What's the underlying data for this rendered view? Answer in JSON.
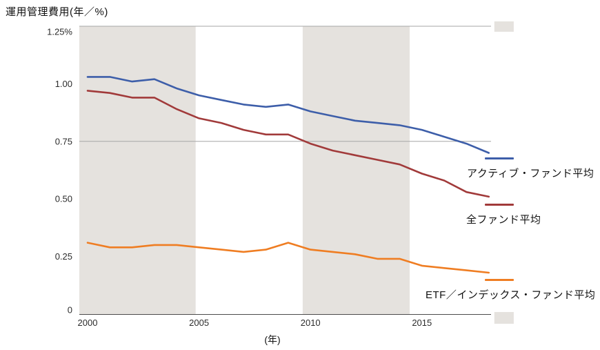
{
  "title": "運用管理費用(年／%)",
  "chart_data": {
    "type": "line",
    "title": "運用管理費用(年／%)",
    "xlabel": "(年)",
    "ylabel": "",
    "x": [
      2000,
      2001,
      2002,
      2003,
      2004,
      2005,
      2006,
      2007,
      2008,
      2009,
      2010,
      2011,
      2012,
      2013,
      2014,
      2015,
      2016,
      2017,
      2018
    ],
    "series": [
      {
        "name": "アクティブ・ファンド平均",
        "color": "#3d5ea9",
        "values": [
          1.03,
          1.03,
          1.01,
          1.02,
          0.98,
          0.95,
          0.93,
          0.91,
          0.9,
          0.91,
          0.88,
          0.86,
          0.84,
          0.83,
          0.82,
          0.8,
          0.77,
          0.74,
          0.7
        ]
      },
      {
        "name": "全ファンド平均",
        "color": "#a13a3a",
        "values": [
          0.97,
          0.96,
          0.94,
          0.94,
          0.89,
          0.85,
          0.83,
          0.8,
          0.78,
          0.78,
          0.74,
          0.71,
          0.69,
          0.67,
          0.65,
          0.61,
          0.58,
          0.53,
          0.51
        ]
      },
      {
        "name": "ETF／インデックス・ファンド平均",
        "color": "#ef7d22",
        "values": [
          0.31,
          0.29,
          0.29,
          0.3,
          0.3,
          0.29,
          0.28,
          0.27,
          0.28,
          0.31,
          0.28,
          0.27,
          0.26,
          0.24,
          0.24,
          0.21,
          0.2,
          0.19,
          0.18
        ]
      }
    ],
    "xlim": [
      1999.63,
      2018.1
    ],
    "ylim": [
      0,
      1.25
    ],
    "y_ticks": [
      {
        "value": 1.25,
        "label": "1.25%"
      },
      {
        "value": 1.0,
        "label": "1.00"
      },
      {
        "value": 0.75,
        "label": "0.75"
      },
      {
        "value": 0.5,
        "label": "0.50"
      },
      {
        "value": 0.25,
        "label": "0.25"
      },
      {
        "value": 0,
        "label": "0"
      }
    ],
    "x_ticks": [
      {
        "value": 2000,
        "label": "2000"
      },
      {
        "value": 2005,
        "label": "2005"
      },
      {
        "value": 2010,
        "label": "2010"
      },
      {
        "value": 2015,
        "label": "2015"
      }
    ],
    "gridlines": [
      0.75,
      1.25
    ],
    "shaded_regions": [
      {
        "from": 1999.63,
        "to": 2004.85
      },
      {
        "from": 2009.65,
        "to": 2014.45
      },
      {
        "from": 2018.25,
        "to": 2019.12
      }
    ],
    "shade_color": "#e5e2de",
    "grid_color": "#a6a6a6",
    "axis_color": "#4a4a4a",
    "legend_position": "right"
  }
}
